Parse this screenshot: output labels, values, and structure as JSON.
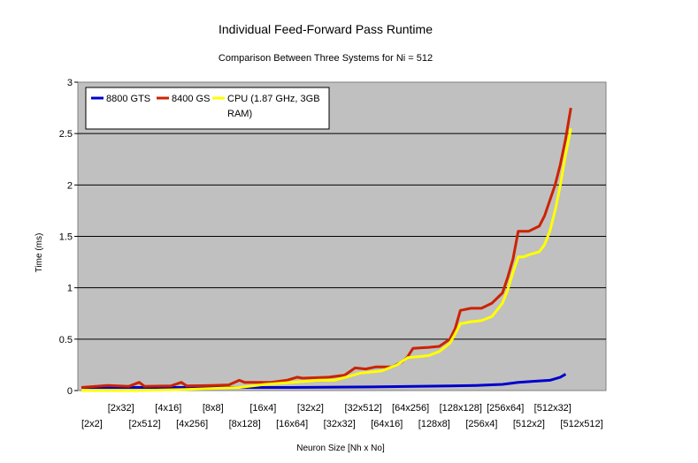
{
  "chart_data": {
    "type": "line",
    "title": "Individual Feed-Forward Pass Runtime",
    "subtitle": "Comparison Between Three Systems for Ni = 512",
    "xlabel": "Neuron Size [Nh x No]",
    "ylabel": "Time (ms)",
    "ylim": [
      0,
      3
    ],
    "yticks": [
      "0",
      "0.5",
      "1",
      "1.5",
      "2",
      "2.5",
      "3"
    ],
    "grid": true,
    "legend_position": "top-left",
    "x_count": 100,
    "x_tick_labels": [
      {
        "label": "[2x2]",
        "index": 0,
        "row": 2
      },
      {
        "label": "[2x32]",
        "index": 5,
        "row": 1
      },
      {
        "label": "[2x512]",
        "index": 9,
        "row": 2
      },
      {
        "label": "[4x16]",
        "index": 14,
        "row": 1
      },
      {
        "label": "[4x256]",
        "index": 18,
        "row": 2
      },
      {
        "label": "[8x8]",
        "index": 23,
        "row": 1
      },
      {
        "label": "[8x128]",
        "index": 28,
        "row": 2
      },
      {
        "label": "[16x4]",
        "index": 32,
        "row": 1
      },
      {
        "label": "[16x64]",
        "index": 37,
        "row": 2
      },
      {
        "label": "[32x2]",
        "index": 41,
        "row": 1
      },
      {
        "label": "[32x32]",
        "index": 46,
        "row": 2
      },
      {
        "label": "[32x512]",
        "index": 50,
        "row": 1
      },
      {
        "label": "[64x16]",
        "index": 55,
        "row": 2
      },
      {
        "label": "[64x256]",
        "index": 59,
        "row": 1
      },
      {
        "label": "[128x8]",
        "index": 64,
        "row": 2
      },
      {
        "label": "[128x128]",
        "index": 68,
        "row": 1
      },
      {
        "label": "[256x4]",
        "index": 73,
        "row": 2
      },
      {
        "label": "[256x64]",
        "index": 77,
        "row": 1
      },
      {
        "label": "[512x2]",
        "index": 82,
        "row": 2
      },
      {
        "label": "[512x32]",
        "index": 86,
        "row": 1
      },
      {
        "label": "[512x512]",
        "index": 91,
        "row": 2
      }
    ],
    "series": [
      {
        "name": "8800 GTS",
        "color": "#0000cc",
        "points": [
          [
            0,
            0.03
          ],
          [
            20,
            0.03
          ],
          [
            40,
            0.03
          ],
          [
            55,
            0.035
          ],
          [
            70,
            0.045
          ],
          [
            75,
            0.05
          ],
          [
            80,
            0.06
          ],
          [
            83,
            0.08
          ],
          [
            86,
            0.09
          ],
          [
            89,
            0.1
          ],
          [
            91,
            0.13
          ],
          [
            92,
            0.16
          ]
        ]
      },
      {
        "name": "8400 GS",
        "color": "#cc2200",
        "points": [
          [
            0,
            0.03
          ],
          [
            5,
            0.05
          ],
          [
            9,
            0.04
          ],
          [
            11,
            0.08
          ],
          [
            12,
            0.04
          ],
          [
            17,
            0.045
          ],
          [
            19,
            0.08
          ],
          [
            20,
            0.045
          ],
          [
            25,
            0.05
          ],
          [
            28,
            0.055
          ],
          [
            30,
            0.1
          ],
          [
            31,
            0.08
          ],
          [
            36,
            0.08
          ],
          [
            39,
            0.1
          ],
          [
            41,
            0.13
          ],
          [
            42,
            0.12
          ],
          [
            47,
            0.13
          ],
          [
            50,
            0.15
          ],
          [
            52,
            0.22
          ],
          [
            54,
            0.21
          ],
          [
            56,
            0.23
          ],
          [
            59,
            0.23
          ],
          [
            61,
            0.28
          ],
          [
            62,
            0.33
          ],
          [
            63,
            0.41
          ],
          [
            66,
            0.42
          ],
          [
            68,
            0.43
          ],
          [
            70,
            0.5
          ],
          [
            71,
            0.6
          ],
          [
            72,
            0.78
          ],
          [
            74,
            0.8
          ],
          [
            76,
            0.8
          ],
          [
            78,
            0.85
          ],
          [
            80,
            0.95
          ],
          [
            81,
            1.1
          ],
          [
            82,
            1.28
          ],
          [
            83,
            1.55
          ],
          [
            85,
            1.55
          ],
          [
            87,
            1.6
          ],
          [
            88,
            1.7
          ],
          [
            89,
            1.85
          ],
          [
            90,
            2.0
          ],
          [
            91,
            2.2
          ],
          [
            92,
            2.45
          ],
          [
            93,
            2.75
          ]
        ]
      },
      {
        "name": "CPU (1.87 GHz, 3GB RAM)",
        "color": "#ffff00",
        "points": [
          [
            0,
            0.0
          ],
          [
            10,
            0.0
          ],
          [
            20,
            0.01
          ],
          [
            30,
            0.03
          ],
          [
            35,
            0.06
          ],
          [
            40,
            0.08
          ],
          [
            45,
            0.1
          ],
          [
            48,
            0.1
          ],
          [
            51,
            0.14
          ],
          [
            53,
            0.17
          ],
          [
            57,
            0.19
          ],
          [
            60,
            0.25
          ],
          [
            62,
            0.32
          ],
          [
            64,
            0.33
          ],
          [
            66,
            0.34
          ],
          [
            68,
            0.38
          ],
          [
            70,
            0.46
          ],
          [
            71,
            0.55
          ],
          [
            72,
            0.65
          ],
          [
            74,
            0.67
          ],
          [
            76,
            0.68
          ],
          [
            78,
            0.72
          ],
          [
            80,
            0.85
          ],
          [
            81,
            0.98
          ],
          [
            82,
            1.15
          ],
          [
            83,
            1.3
          ],
          [
            84,
            1.3
          ],
          [
            85,
            1.32
          ],
          [
            87,
            1.35
          ],
          [
            88,
            1.42
          ],
          [
            89,
            1.55
          ],
          [
            90,
            1.75
          ],
          [
            91,
            2.0
          ],
          [
            92,
            2.3
          ],
          [
            93,
            2.55
          ]
        ]
      }
    ]
  }
}
